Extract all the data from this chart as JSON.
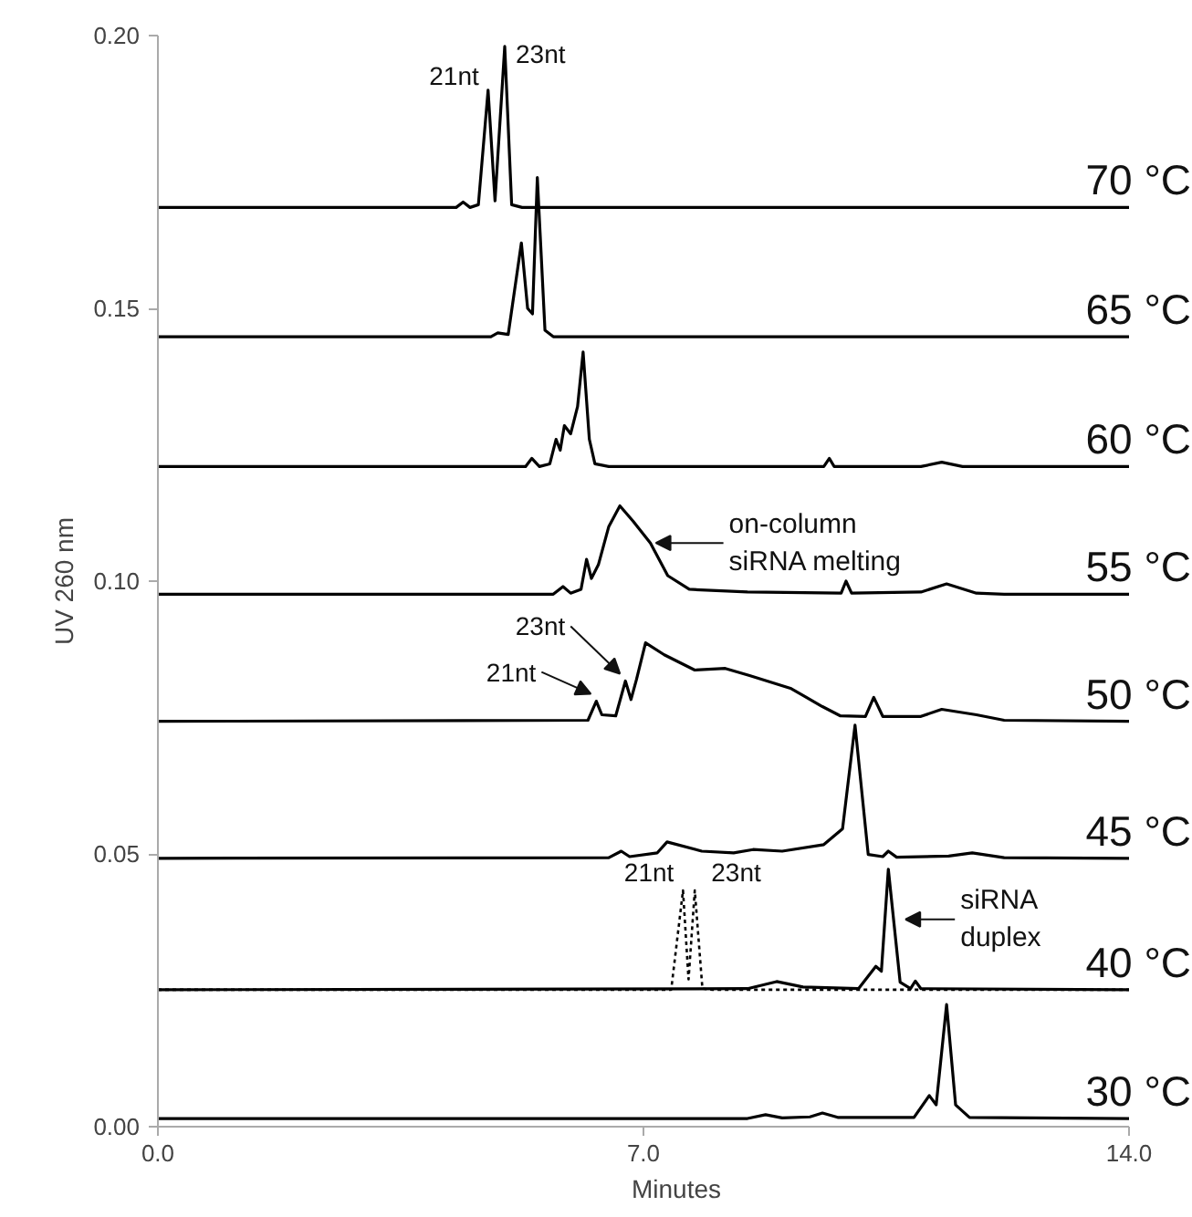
{
  "chart_data": {
    "type": "line",
    "xlabel": "Minutes",
    "ylabel": "UV 260 nm",
    "xlim": [
      0,
      14
    ],
    "ylim": [
      0,
      0.2
    ],
    "xticks": [
      {
        "value": 0,
        "label": "0.0"
      },
      {
        "value": 7,
        "label": "7.0"
      },
      {
        "value": 14,
        "label": "14.0"
      }
    ],
    "yticks": [
      {
        "value": 0,
        "label": "0.00"
      },
      {
        "value": 0.05,
        "label": "0.05"
      },
      {
        "value": 0.1,
        "label": "0.10"
      },
      {
        "value": 0.15,
        "label": "0.15"
      },
      {
        "value": 0.2,
        "label": "0.20"
      }
    ],
    "grid": false,
    "legend": false,
    "series": [
      {
        "name": "70 °C",
        "color": "#000000",
        "line_style": "solid",
        "x": [
          0,
          4.3,
          4.4,
          4.5,
          4.62,
          4.76,
          4.86,
          5.0,
          5.1,
          5.25,
          14
        ],
        "values": [
          0.1685,
          0.1685,
          0.1695,
          0.1685,
          0.169,
          0.19,
          0.1697,
          0.198,
          0.169,
          0.1685,
          0.1685
        ]
      },
      {
        "name": "65 °C",
        "color": "#000000",
        "line_style": "solid",
        "x": [
          0,
          4.8,
          4.9,
          5.05,
          5.24,
          5.33,
          5.4,
          5.47,
          5.58,
          5.7,
          14
        ],
        "values": [
          0.1448,
          0.1448,
          0.1455,
          0.1452,
          0.162,
          0.15,
          0.149,
          0.174,
          0.146,
          0.1448,
          0.1448
        ]
      },
      {
        "name": "60 °C",
        "color": "#000000",
        "line_style": "solid",
        "x": [
          0,
          5.3,
          5.39,
          5.5,
          5.65,
          5.74,
          5.8,
          5.86,
          5.95,
          6.05,
          6.13,
          6.22,
          6.3,
          6.5,
          9.6,
          9.68,
          9.75,
          11.0,
          11.3,
          11.6,
          14
        ],
        "values": [
          0.121,
          0.121,
          0.1225,
          0.121,
          0.1215,
          0.126,
          0.124,
          0.1285,
          0.127,
          0.132,
          0.142,
          0.126,
          0.1215,
          0.121,
          0.121,
          0.1225,
          0.121,
          0.121,
          0.1218,
          0.121,
          0.121
        ]
      },
      {
        "name": "55 °C",
        "color": "#000000",
        "line_style": "solid",
        "x": [
          0,
          5.7,
          5.84,
          5.95,
          6.1,
          6.18,
          6.25,
          6.35,
          6.5,
          6.66,
          6.85,
          7.1,
          7.35,
          7.66,
          8.5,
          9.85,
          9.92,
          10.0,
          11.0,
          11.37,
          11.8,
          12.2,
          14
        ],
        "values": [
          0.0976,
          0.0976,
          0.099,
          0.0978,
          0.0985,
          0.104,
          0.1005,
          0.103,
          0.11,
          0.1138,
          0.111,
          0.107,
          0.101,
          0.0985,
          0.098,
          0.0978,
          0.1,
          0.0978,
          0.098,
          0.0995,
          0.0978,
          0.0976,
          0.0976
        ]
      },
      {
        "name": "50 °C",
        "color": "#000000",
        "line_style": "solid",
        "x": [
          0,
          6.2,
          6.32,
          6.4,
          6.6,
          6.74,
          6.82,
          6.9,
          7.03,
          7.3,
          7.74,
          8.18,
          8.53,
          9.13,
          9.58,
          9.84,
          10.2,
          10.32,
          10.45,
          11.0,
          11.3,
          11.8,
          12.2,
          14
        ],
        "values": [
          0.0743,
          0.0745,
          0.078,
          0.0755,
          0.0753,
          0.0817,
          0.0783,
          0.082,
          0.0887,
          0.0865,
          0.0837,
          0.084,
          0.0827,
          0.0803,
          0.077,
          0.0753,
          0.0752,
          0.0787,
          0.0752,
          0.0752,
          0.0765,
          0.0755,
          0.0745,
          0.0743
        ]
      },
      {
        "name": "45 °C",
        "color": "#000000",
        "line_style": "solid",
        "x": [
          0,
          6.5,
          6.68,
          6.8,
          7.2,
          7.34,
          7.84,
          8.3,
          8.58,
          9.0,
          9.6,
          9.87,
          10.05,
          10.24,
          10.45,
          10.53,
          10.65,
          11.4,
          11.74,
          12.2,
          14
        ],
        "values": [
          0.0492,
          0.0493,
          0.0505,
          0.0495,
          0.0502,
          0.0522,
          0.0505,
          0.0502,
          0.0508,
          0.0505,
          0.0517,
          0.0546,
          0.0736,
          0.0499,
          0.0495,
          0.0505,
          0.0494,
          0.0496,
          0.0502,
          0.0493,
          0.0492
        ]
      },
      {
        "color": "#000000",
        "line_style": "dotted",
        "x": [
          0,
          7.4,
          7.57,
          7.65,
          7.74,
          7.85,
          8.0,
          14
        ],
        "values": [
          0.0251,
          0.0251,
          0.0433,
          0.027,
          0.0433,
          0.0253,
          0.0251,
          0.0251
        ]
      },
      {
        "name": "40 °C",
        "color": "#000000",
        "line_style": "solid",
        "x": [
          0,
          8.5,
          8.92,
          9.3,
          10.1,
          10.35,
          10.43,
          10.53,
          10.7,
          10.85,
          10.92,
          11.0,
          14
        ],
        "values": [
          0.0251,
          0.0253,
          0.0266,
          0.0256,
          0.0253,
          0.0294,
          0.0285,
          0.0472,
          0.0265,
          0.0253,
          0.0267,
          0.0253,
          0.0251
        ]
      },
      {
        "name": "30 °C",
        "color": "#000000",
        "line_style": "solid",
        "x": [
          0,
          8.5,
          8.76,
          9.0,
          9.4,
          9.58,
          9.8,
          10.9,
          11.12,
          11.22,
          11.37,
          11.5,
          11.7,
          14
        ],
        "values": [
          0.0015,
          0.0015,
          0.0022,
          0.0016,
          0.0018,
          0.0025,
          0.0017,
          0.0017,
          0.0057,
          0.004,
          0.0224,
          0.004,
          0.0017,
          0.0015
        ]
      }
    ],
    "annotations": [
      {
        "text": "21nt",
        "x": 4.76,
        "y": 0.19
      },
      {
        "text": "23nt",
        "x": 5.0,
        "y": 0.198
      },
      {
        "text": "on-column\nsiRNA melting",
        "x": 7.1,
        "y": 0.107
      },
      {
        "text": "21nt",
        "x": 6.32,
        "y": 0.078
      },
      {
        "text": "23nt",
        "x": 6.74,
        "y": 0.0817
      },
      {
        "text": "21nt",
        "x": 7.57,
        "y": 0.0433
      },
      {
        "text": "23nt",
        "x": 7.74,
        "y": 0.0433
      },
      {
        "text": "siRNA\nduplex",
        "x": 10.7,
        "y": 0.038
      }
    ]
  }
}
